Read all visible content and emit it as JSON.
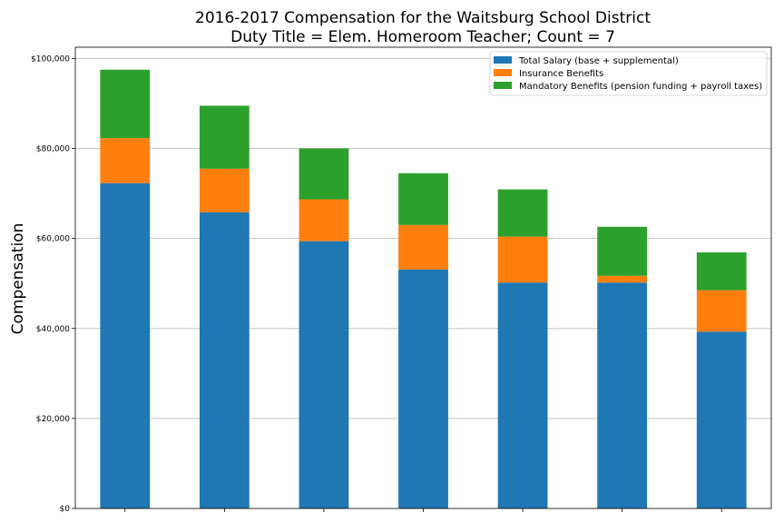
{
  "chart_data": {
    "type": "bar",
    "stacked": true,
    "title": "2016-2017 Compensation for the Waitsburg School District",
    "subtitle": "Duty Title = Elem. Homeroom Teacher; Count = 7",
    "xlabel": "",
    "ylabel": "Compensation",
    "ylim": [
      0,
      102500
    ],
    "yticks": [
      0,
      20000,
      40000,
      60000,
      80000,
      100000
    ],
    "ytick_labels": [
      "$0",
      "$20,000",
      "$40,000",
      "$60,000",
      "$80,000",
      "$100,000"
    ],
    "grid": "y",
    "legend_position": "top-right",
    "categories": [
      "",
      "",
      "",
      "",
      "",
      "",
      ""
    ],
    "series": [
      {
        "name": "Total Salary (base + supplemental)",
        "color": "#1f77b4",
        "values": [
          72300,
          65800,
          59400,
          53100,
          50200,
          50200,
          39300
        ]
      },
      {
        "name": "Insurance Benefits",
        "color": "#ff7f0e",
        "values": [
          10000,
          9700,
          9300,
          9900,
          10200,
          1500,
          9200
        ]
      },
      {
        "name": "Mandatory Benefits (pension funding + payroll taxes)",
        "color": "#2ca02c",
        "values": [
          15200,
          14000,
          11300,
          11500,
          10500,
          10900,
          8400
        ]
      }
    ]
  }
}
